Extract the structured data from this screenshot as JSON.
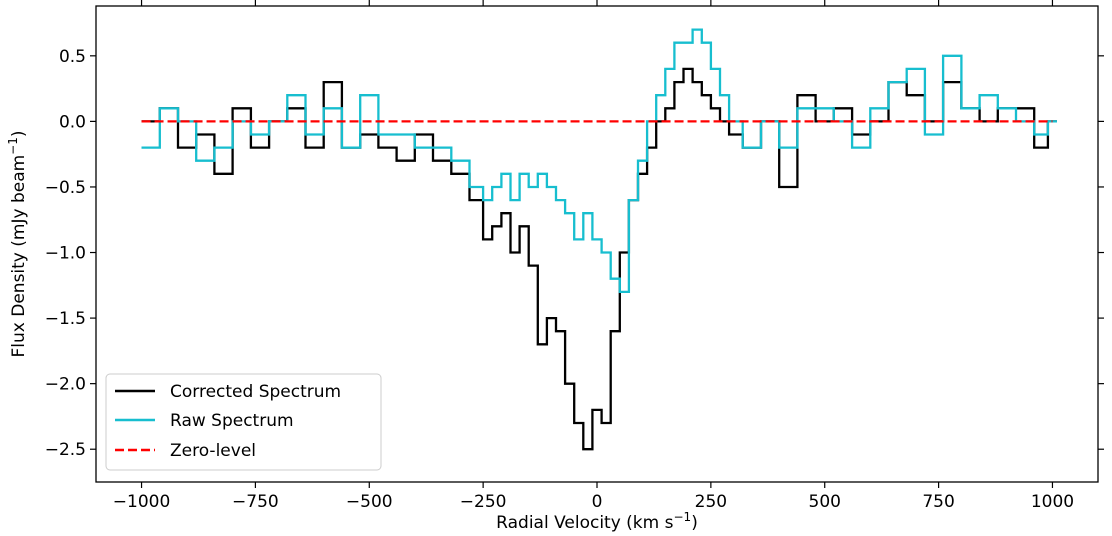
{
  "chart_data": {
    "type": "line",
    "step": true,
    "title": "",
    "xlabel": "Radial Velocity (km s",
    "xlabel_sup": "−1",
    "xlabel_end": ")",
    "ylabel": "Flux Density (mJy beam",
    "ylabel_sup": "−1",
    "ylabel_end": ")",
    "xlim": [
      -1100,
      1100
    ],
    "ylim": [
      -2.75,
      0.88
    ],
    "xticks": [
      -1000,
      -750,
      -500,
      -250,
      0,
      250,
      500,
      750,
      1000
    ],
    "xtick_labels": [
      "−1000",
      "−750",
      "−500",
      "−250",
      "0",
      "250",
      "500",
      "750",
      "1000"
    ],
    "yticks": [
      -2.5,
      -2.0,
      -1.5,
      -1.0,
      -0.5,
      0.0,
      0.5
    ],
    "ytick_labels": [
      "−2.5",
      "−2.0",
      "−1.5",
      "−1.0",
      "−0.5",
      "0.0",
      "0.5"
    ],
    "grid": false,
    "legend_position": "bottom-left",
    "series": [
      {
        "name": "Corrected Spectrum",
        "color": "#000000",
        "style": "solid",
        "x": [
          -980,
          -940,
          -900,
          -860,
          -820,
          -780,
          -740,
          -700,
          -660,
          -620,
          -580,
          -540,
          -500,
          -460,
          -420,
          -380,
          -340,
          -300,
          -260,
          -240,
          -220,
          -200,
          -180,
          -160,
          -140,
          -120,
          -100,
          -80,
          -60,
          -40,
          -20,
          0,
          20,
          40,
          60,
          80,
          100,
          120,
          140,
          160,
          180,
          200,
          220,
          240,
          260,
          280,
          300,
          340,
          380,
          420,
          460,
          500,
          540,
          580,
          620,
          660,
          700,
          740,
          780,
          820,
          860,
          900,
          940,
          980,
          1000
        ],
        "y": [
          0.0,
          0.1,
          -0.2,
          -0.1,
          -0.4,
          0.1,
          -0.2,
          0.0,
          0.1,
          -0.2,
          0.3,
          -0.2,
          -0.1,
          -0.2,
          -0.3,
          -0.1,
          -0.3,
          -0.4,
          -0.6,
          -0.9,
          -0.8,
          -0.7,
          -1.0,
          -0.8,
          -1.1,
          -1.7,
          -1.5,
          -1.6,
          -2.0,
          -2.3,
          -2.5,
          -2.2,
          -2.3,
          -1.6,
          -1.0,
          -0.6,
          -0.4,
          -0.2,
          0.0,
          0.1,
          0.3,
          0.4,
          0.3,
          0.2,
          0.1,
          0.0,
          -0.1,
          -0.2,
          0.0,
          -0.5,
          0.2,
          0.0,
          0.1,
          -0.1,
          0.0,
          0.3,
          0.2,
          0.0,
          0.3,
          0.1,
          0.0,
          0.1,
          0.1,
          -0.2,
          0.0
        ]
      },
      {
        "name": "Raw Spectrum",
        "color": "#17becf",
        "style": "solid",
        "x": [
          -980,
          -940,
          -900,
          -860,
          -820,
          -780,
          -740,
          -700,
          -660,
          -620,
          -580,
          -540,
          -500,
          -460,
          -420,
          -380,
          -340,
          -300,
          -260,
          -240,
          -220,
          -200,
          -180,
          -160,
          -140,
          -120,
          -100,
          -80,
          -60,
          -40,
          -20,
          0,
          20,
          40,
          60,
          80,
          100,
          120,
          140,
          160,
          180,
          200,
          220,
          240,
          260,
          280,
          300,
          340,
          380,
          420,
          460,
          500,
          540,
          580,
          620,
          660,
          700,
          740,
          780,
          820,
          860,
          900,
          940,
          980,
          1000
        ],
        "y": [
          -0.2,
          0.1,
          0.0,
          -0.3,
          -0.2,
          0.0,
          -0.1,
          0.0,
          0.2,
          -0.1,
          0.1,
          -0.2,
          0.2,
          -0.1,
          -0.1,
          -0.2,
          -0.2,
          -0.3,
          -0.5,
          -0.6,
          -0.5,
          -0.4,
          -0.6,
          -0.4,
          -0.5,
          -0.4,
          -0.5,
          -0.6,
          -0.7,
          -0.9,
          -0.7,
          -0.9,
          -1.0,
          -1.2,
          -1.3,
          -0.6,
          -0.3,
          0.0,
          0.2,
          0.4,
          0.6,
          0.6,
          0.7,
          0.6,
          0.4,
          0.2,
          0.0,
          -0.2,
          0.0,
          -0.2,
          0.1,
          0.1,
          0.0,
          -0.2,
          0.1,
          0.3,
          0.4,
          -0.1,
          0.5,
          0.1,
          0.2,
          0.1,
          0.0,
          -0.1,
          0.0
        ]
      },
      {
        "name": "Zero-level",
        "color": "#ff0000",
        "style": "dashed",
        "x": [
          -1000,
          1000
        ],
        "y": [
          0,
          0
        ]
      }
    ]
  }
}
